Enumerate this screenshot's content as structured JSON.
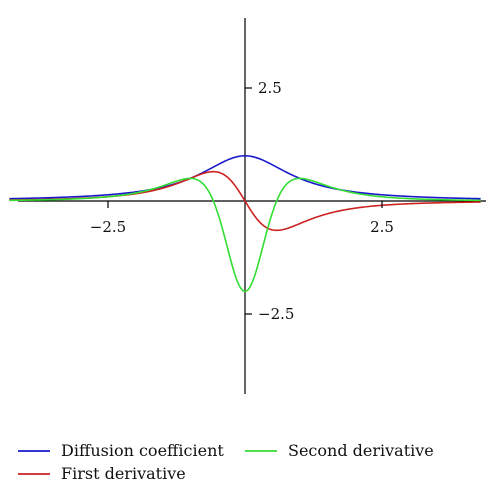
{
  "chart_data": {
    "type": "line",
    "title": "",
    "xlabel": "",
    "ylabel": "",
    "xlim": [
      -4.3,
      4.3
    ],
    "ylim": [
      -3.6,
      4.2
    ],
    "x_ticks": [
      {
        "value": -2.5,
        "label": "−2.5"
      },
      {
        "value": 2.5,
        "label": "2.5"
      }
    ],
    "y_ticks": [
      {
        "value": 2.5,
        "label": "2.5"
      },
      {
        "value": -2.5,
        "label": "−2.5"
      }
    ],
    "grid": false,
    "legend_position": "bottom",
    "series": [
      {
        "name": "Diffusion coefficient",
        "color": "#1a1acc",
        "formula": "1/(1+x^2)",
        "points": [
          [
            -4.3,
            0.05
          ],
          [
            -3,
            0.1
          ],
          [
            -2,
            0.2
          ],
          [
            -1.5,
            0.31
          ],
          [
            -1,
            0.5
          ],
          [
            -0.5,
            0.8
          ],
          [
            0,
            1.0
          ],
          [
            0.5,
            0.8
          ],
          [
            1,
            0.5
          ],
          [
            1.5,
            0.31
          ],
          [
            2,
            0.2
          ],
          [
            3,
            0.1
          ],
          [
            4.3,
            0.05
          ]
        ]
      },
      {
        "name": "First derivative",
        "color": "#cc2222",
        "formula": "-2x/(1+x^2)^2",
        "points": [
          [
            -4.3,
            0.02
          ],
          [
            -3,
            0.06
          ],
          [
            -2,
            0.16
          ],
          [
            -1,
            0.5
          ],
          [
            -0.58,
            0.65
          ],
          [
            0,
            0
          ],
          [
            0.58,
            -0.65
          ],
          [
            1,
            -0.5
          ],
          [
            2,
            -0.16
          ],
          [
            3,
            -0.06
          ],
          [
            4.3,
            -0.02
          ]
        ]
      },
      {
        "name": "Second derivative",
        "color": "#33dd33",
        "formula": "(6x^2-2)/(1+x^2)^3",
        "points": [
          [
            -4.3,
            0.02
          ],
          [
            -3,
            0.05
          ],
          [
            -2,
            0.18
          ],
          [
            -1,
            0.5
          ],
          [
            -0.58,
            0.2
          ],
          [
            0,
            -2.0
          ],
          [
            0.58,
            0.2
          ],
          [
            1,
            0.5
          ],
          [
            2,
            0.18
          ],
          [
            3,
            0.05
          ],
          [
            4.3,
            0.02
          ]
        ]
      }
    ],
    "legend": [
      {
        "label": "Diffusion coefficient",
        "color": "#1a1acc"
      },
      {
        "label": "Second derivative",
        "color": "#33dd33"
      },
      {
        "label": "First derivative",
        "color": "#cc2222"
      }
    ]
  }
}
